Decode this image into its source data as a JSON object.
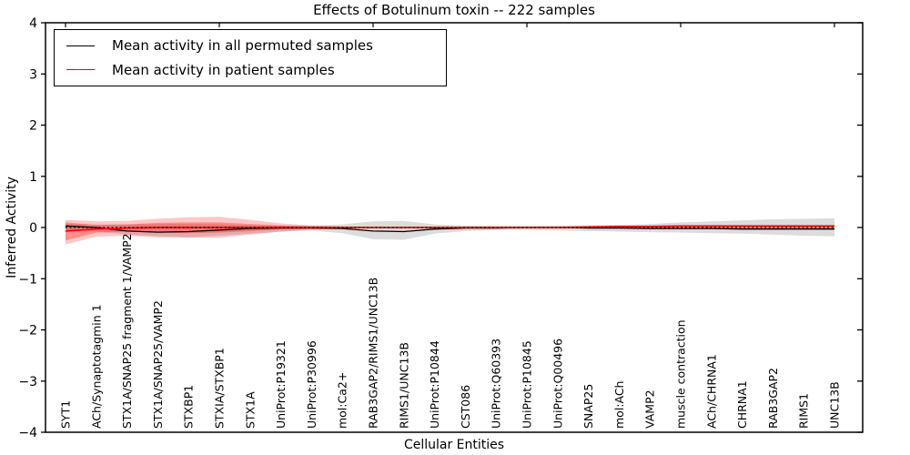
{
  "title": "Effects of Botulinum toxin -- 222 samples",
  "axes": {
    "xlabel": "Cellular Entities",
    "ylabel": "Inferred Activity",
    "yticklabels": [
      "4",
      "3",
      "2",
      "1",
      "0",
      "−1",
      "−2",
      "−3",
      "−4"
    ]
  },
  "legend": {
    "items": [
      {
        "label": "Mean activity in all permuted samples",
        "color": "#000000"
      },
      {
        "label": "Mean activity in patient samples",
        "color": "#ff0000"
      }
    ]
  },
  "chart_data": {
    "type": "line",
    "title": "Effects of Botulinum toxin -- 222 samples",
    "xlabel": "Cellular Entities",
    "ylabel": "Inferred Activity",
    "ylim": [
      -4,
      4
    ],
    "yticks": [
      -4,
      -3,
      -2,
      -1,
      0,
      1,
      2,
      3,
      4
    ],
    "xticks_top_indices": [
      0,
      5,
      10,
      15,
      20,
      25
    ],
    "grid": false,
    "legend_position": "upper left",
    "categories": [
      "SYT1",
      "ACh/Synaptotagmin 1",
      "STX1A/SNAP25 fragment 1/VAMP2",
      "STX1A/SNAP25/VAMP2",
      "STXBP1",
      "STXIA/STXBP1",
      "STX1A",
      "UniProt:P19321",
      "UniProt:P30996",
      "mol:Ca2+",
      "RAB3GAP2/RIMS1/UNC13B",
      "RIMS1/UNC13B",
      "UniProt:P10844",
      "CST086",
      "UniProt:Q60393",
      "UniProt:P10845",
      "UniProt:Q00496",
      "SNAP25",
      "mol:ACh",
      "VAMP2",
      "muscle contraction",
      "ACh/CHRNA1",
      "CHRNA1",
      "RAB3GAP2",
      "RIMS1",
      "UNC13B"
    ],
    "series": [
      {
        "name": "Mean activity in all permuted samples",
        "color": "#000000",
        "style": "solid",
        "line_width": 1.3,
        "values": [
          0.03,
          0.0,
          -0.07,
          -0.09,
          -0.08,
          -0.05,
          -0.02,
          -0.01,
          -0.01,
          -0.02,
          -0.07,
          -0.08,
          -0.03,
          -0.01,
          -0.01,
          0.0,
          0.0,
          -0.01,
          -0.01,
          -0.02,
          -0.02,
          -0.02,
          -0.03,
          -0.03,
          -0.03,
          -0.03
        ]
      },
      {
        "name": "Mean activity in patient samples",
        "color": "#ff0000",
        "style": "solid",
        "line_width": 1.7,
        "values": [
          -0.07,
          -0.03,
          -0.01,
          0.0,
          0.0,
          0.0,
          0.0,
          0.0,
          0.0,
          0.0,
          0.0,
          0.0,
          0.0,
          0.0,
          0.0,
          0.0,
          0.0,
          0.01,
          0.02,
          0.02,
          0.03,
          0.03,
          0.03,
          0.03,
          0.03,
          0.03
        ]
      },
      {
        "name": "zero reference (dotted)",
        "color": "#000000",
        "style": "dotted",
        "line_width": 1.3,
        "values": [
          0,
          0,
          0,
          0,
          0,
          0,
          0,
          0,
          0,
          0,
          0,
          0,
          0,
          0,
          0,
          0,
          0,
          0,
          0,
          0,
          0,
          0,
          0,
          0,
          0,
          0
        ]
      }
    ],
    "bands": [
      {
        "name": "permuted samples confidence band",
        "color": "rgba(128,128,128,0.28)",
        "upper": [
          0.07,
          0.06,
          0.06,
          0.07,
          0.07,
          0.06,
          0.05,
          0.04,
          0.04,
          0.06,
          0.12,
          0.13,
          0.06,
          0.04,
          0.03,
          0.03,
          0.04,
          0.04,
          0.05,
          0.07,
          0.1,
          0.12,
          0.14,
          0.16,
          0.17,
          0.18
        ],
        "lower": [
          -0.05,
          -0.08,
          -0.14,
          -0.17,
          -0.19,
          -0.16,
          -0.12,
          -0.08,
          -0.06,
          -0.11,
          -0.23,
          -0.24,
          -0.12,
          -0.07,
          -0.05,
          -0.05,
          -0.06,
          -0.07,
          -0.08,
          -0.09,
          -0.1,
          -0.11,
          -0.12,
          -0.14,
          -0.16,
          -0.17
        ]
      },
      {
        "name": "patient samples confidence band outer",
        "color": "rgba(255,0,0,0.22)",
        "upper": [
          0.15,
          0.12,
          0.13,
          0.17,
          0.2,
          0.21,
          0.15,
          0.08,
          0.04,
          0.02,
          0.01,
          0.01,
          0.01,
          0.01,
          0.01,
          0.01,
          0.01,
          0.02,
          0.03,
          0.03,
          0.04,
          0.04,
          0.05,
          0.05,
          0.05,
          0.05
        ],
        "lower": [
          -0.33,
          -0.18,
          -0.16,
          -0.19,
          -0.2,
          -0.2,
          -0.14,
          -0.08,
          -0.04,
          -0.02,
          -0.01,
          -0.01,
          -0.01,
          -0.01,
          -0.01,
          -0.01,
          -0.01,
          -0.01,
          -0.01,
          -0.01,
          -0.01,
          -0.01,
          -0.02,
          -0.02,
          -0.02,
          -0.02
        ]
      },
      {
        "name": "patient samples confidence band inner",
        "color": "rgba(255,0,0,0.30)",
        "upper": [
          0.1,
          0.05,
          0.06,
          0.09,
          0.1,
          0.1,
          0.07,
          0.04,
          0.02,
          0.01,
          0.01,
          0.01,
          0.01,
          0.01,
          0.01,
          0.01,
          0.01,
          0.01,
          0.01,
          0.01,
          0.02,
          0.02,
          0.02,
          0.02,
          0.02,
          0.02
        ],
        "lower": [
          -0.25,
          -0.1,
          -0.08,
          -0.1,
          -0.11,
          -0.1,
          -0.07,
          -0.04,
          -0.02,
          -0.01,
          -0.01,
          -0.01,
          -0.01,
          -0.01,
          -0.01,
          -0.01,
          -0.01,
          -0.01,
          -0.01,
          -0.01,
          -0.01,
          -0.01,
          -0.01,
          -0.01,
          -0.01,
          -0.01
        ]
      }
    ]
  }
}
